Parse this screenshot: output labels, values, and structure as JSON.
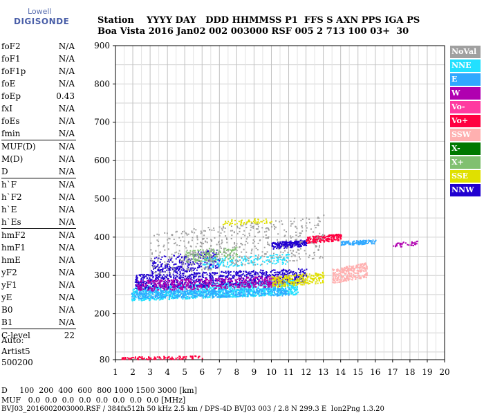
{
  "logo": {
    "line1": "Lowell",
    "line2": "DIGISONDE"
  },
  "header": {
    "labels": [
      "Station",
      "YYYY",
      "DAY",
      "DDD",
      "HHMMSS",
      "P1",
      "FFS",
      "S",
      "AXN",
      "PPS",
      "IGA",
      "PS"
    ],
    "values": [
      "Boa Vista",
      "2016",
      "Jan02",
      "002",
      "003000",
      "RSF",
      "005",
      "2",
      "713",
      "100",
      "03+",
      "30"
    ]
  },
  "params": [
    [
      {
        "k": "foF2",
        "v": "N/A"
      },
      {
        "k": "foF1",
        "v": "N/A"
      },
      {
        "k": "foF1p",
        "v": "N/A"
      },
      {
        "k": "foE",
        "v": "N/A"
      },
      {
        "k": "foEp",
        "v": "0.43"
      },
      {
        "k": "fxI",
        "v": "N/A"
      },
      {
        "k": "foEs",
        "v": "N/A"
      },
      {
        "k": "fmin",
        "v": "N/A"
      }
    ],
    [
      {
        "k": "MUF(D)",
        "v": "N/A"
      },
      {
        "k": "M(D)",
        "v": "N/A"
      },
      {
        "k": "D",
        "v": "N/A"
      }
    ],
    [
      {
        "k": "h`F",
        "v": "N/A"
      },
      {
        "k": "h`F2",
        "v": "N/A"
      },
      {
        "k": "h`E",
        "v": "N/A"
      },
      {
        "k": "h`Es",
        "v": "N/A"
      }
    ],
    [
      {
        "k": "hmF2",
        "v": "N/A"
      },
      {
        "k": "hmF1",
        "v": "N/A"
      },
      {
        "k": "hmE",
        "v": "N/A"
      },
      {
        "k": "yF2",
        "v": "N/A"
      },
      {
        "k": "yF1",
        "v": "N/A"
      },
      {
        "k": "yE",
        "v": "N/A"
      },
      {
        "k": "B0",
        "v": "N/A"
      },
      {
        "k": "B1",
        "v": "N/A"
      }
    ],
    [
      {
        "k": "C-level",
        "v": "22"
      }
    ]
  ],
  "auto": {
    "l1": "Auto:",
    "l2": "Artist5",
    "l3": "500200"
  },
  "footer": {
    "d_row": "D     100  200  400  600  800 1000 1500 3000 [km]",
    "muf_row": "MUF   0.0  0.0  0.0  0.0  0.0  0.0  0.0  0.0 [MHz]",
    "info": "BVJ03_2016002003000.RSF / 384fx512h 50 kHz 2.5 km / DPS-4D BVJ03 003 / 2.8 N 299.3 E  Ion2Png 1.3.20"
  },
  "legend": [
    {
      "label": "NoVal",
      "color": "#a0a0a0"
    },
    {
      "label": "NNE",
      "color": "#22e0ff"
    },
    {
      "label": "E",
      "color": "#30a8ff"
    },
    {
      "label": "W",
      "color": "#b000b0"
    },
    {
      "label": "Vo-",
      "color": "#ff3aa0"
    },
    {
      "label": "Vo+",
      "color": "#ff0040"
    },
    {
      "label": "SSW",
      "color": "#ffb0b0"
    },
    {
      "label": "X-",
      "color": "#007800"
    },
    {
      "label": "X+",
      "color": "#80c070"
    },
    {
      "label": "SSE",
      "color": "#e0e000"
    },
    {
      "label": "NNW",
      "color": "#2000d0"
    }
  ],
  "chart_data": {
    "type": "scatter",
    "xlim": [
      1,
      20
    ],
    "ylim": [
      80,
      900
    ],
    "xticks": [
      1,
      2,
      3,
      4,
      5,
      6,
      7,
      8,
      9,
      10,
      11,
      12,
      13,
      14,
      15,
      16,
      17,
      18,
      19,
      20
    ],
    "yticks": [
      80,
      200,
      300,
      400,
      500,
      600,
      700,
      800,
      900
    ],
    "clusters": [
      {
        "name": "NNE",
        "x": [
          1.9,
          11.5
        ],
        "y": [
          235,
          290
        ],
        "n": 1400
      },
      {
        "name": "E",
        "x": [
          1.9,
          11
        ],
        "y": [
          240,
          270
        ],
        "n": 500
      },
      {
        "name": "NNW",
        "x": [
          2.1,
          12
        ],
        "y": [
          265,
          320
        ],
        "n": 900
      },
      {
        "name": "W",
        "x": [
          2.2,
          10.5
        ],
        "y": [
          260,
          300
        ],
        "n": 500
      },
      {
        "name": "NNW",
        "x": [
          3,
          7
        ],
        "y": [
          300,
          370
        ],
        "n": 300
      },
      {
        "name": "NNW",
        "x": [
          10,
          12
        ],
        "y": [
          370,
          395
        ],
        "n": 200
      },
      {
        "name": "Vo+",
        "x": [
          12,
          14
        ],
        "y": [
          385,
          410
        ],
        "n": 200
      },
      {
        "name": "SSE",
        "x": [
          10,
          13
        ],
        "y": [
          270,
          310
        ],
        "n": 250
      },
      {
        "name": "SSW",
        "x": [
          13.5,
          15.5
        ],
        "y": [
          280,
          335
        ],
        "n": 300
      },
      {
        "name": "E",
        "x": [
          14,
          16
        ],
        "y": [
          380,
          395
        ],
        "n": 120
      },
      {
        "name": "NNE",
        "x": [
          6,
          11
        ],
        "y": [
          320,
          360
        ],
        "n": 180
      },
      {
        "name": "X+",
        "x": [
          5,
          8
        ],
        "y": [
          330,
          380
        ],
        "n": 150
      },
      {
        "name": "SSE",
        "x": [
          7,
          10
        ],
        "y": [
          432,
          452
        ],
        "n": 60
      },
      {
        "name": "NoVal",
        "x": [
          3,
          13
        ],
        "y": [
          300,
          460
        ],
        "n": 500
      },
      {
        "name": "Vo+",
        "x": [
          1.3,
          6
        ],
        "y": [
          80,
          92
        ],
        "n": 120
      },
      {
        "name": "W",
        "x": [
          17,
          18.5
        ],
        "y": [
          375,
          392
        ],
        "n": 40
      }
    ]
  }
}
